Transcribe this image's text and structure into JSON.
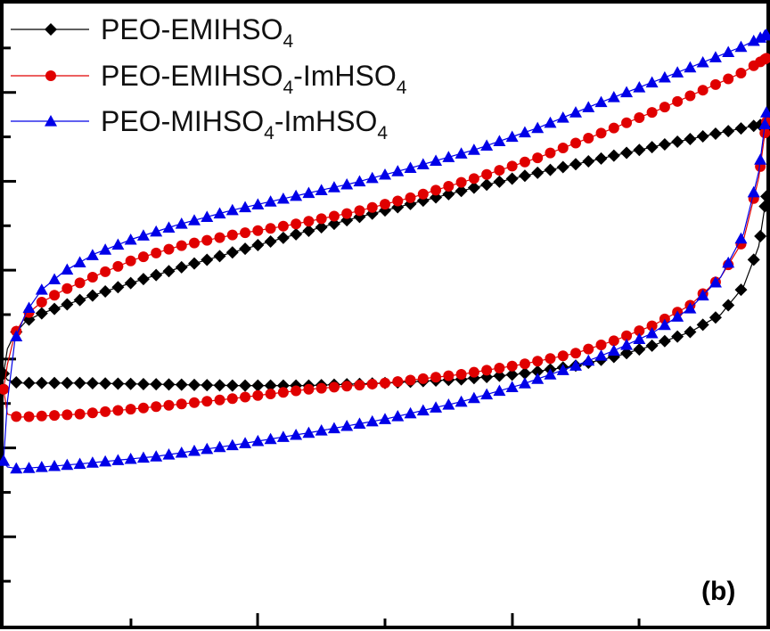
{
  "chart_data": {
    "type": "line",
    "title": "",
    "xlabel": "",
    "ylabel": "",
    "panel_label": "(b)",
    "xlim": [
      0,
      1
    ],
    "ylim": [
      0,
      1
    ],
    "grid": false,
    "legend_placement": "top-left",
    "series": [
      {
        "name": "PEO-EMIHSO4",
        "legend_parts": [
          "PEO-EMIHSO",
          "4",
          ""
        ],
        "color": "#000000",
        "marker": "diamond",
        "upper": {
          "x": [
            0.0,
            0.005,
            0.015,
            0.03,
            0.05,
            0.08,
            0.12,
            0.17,
            0.23,
            0.3,
            0.38,
            0.46,
            0.54,
            0.62,
            0.7,
            0.78,
            0.86,
            0.93,
            0.97,
            0.99,
            1.0
          ],
          "y": [
            0.405,
            0.445,
            0.47,
            0.49,
            0.502,
            0.515,
            0.532,
            0.552,
            0.575,
            0.6,
            0.628,
            0.655,
            0.68,
            0.705,
            0.728,
            0.75,
            0.772,
            0.79,
            0.8,
            0.805,
            0.805
          ]
        },
        "lower": {
          "x": [
            0.0,
            0.005,
            0.02,
            0.05,
            0.1,
            0.2,
            0.3,
            0.4,
            0.5,
            0.6,
            0.68,
            0.75,
            0.8,
            0.85,
            0.9,
            0.94,
            0.97,
            0.99,
            1.0
          ],
          "y": [
            0.405,
            0.395,
            0.39,
            0.39,
            0.39,
            0.388,
            0.386,
            0.386,
            0.39,
            0.396,
            0.405,
            0.418,
            0.432,
            0.45,
            0.472,
            0.5,
            0.545,
            0.61,
            0.69
          ]
        }
      },
      {
        "name": "PEO-EMIHSO4-ImHSO4",
        "legend_parts": [
          "PEO-EMIHSO",
          "4",
          "-ImHSO",
          "4"
        ],
        "color": "#e00000",
        "marker": "circle",
        "upper": {
          "x": [
            0.0,
            0.005,
            0.015,
            0.03,
            0.05,
            0.08,
            0.12,
            0.17,
            0.23,
            0.3,
            0.38,
            0.46,
            0.54,
            0.62,
            0.7,
            0.78,
            0.86,
            0.93,
            0.97,
            0.99,
            1.0
          ],
          "y": [
            0.38,
            0.42,
            0.47,
            0.5,
            0.52,
            0.54,
            0.562,
            0.588,
            0.61,
            0.628,
            0.645,
            0.665,
            0.69,
            0.72,
            0.752,
            0.79,
            0.83,
            0.868,
            0.89,
            0.905,
            0.912
          ]
        },
        "lower": {
          "x": [
            0.0,
            0.005,
            0.02,
            0.05,
            0.1,
            0.2,
            0.3,
            0.4,
            0.5,
            0.6,
            0.68,
            0.75,
            0.8,
            0.85,
            0.9,
            0.94,
            0.97,
            0.99,
            1.0
          ],
          "y": [
            0.38,
            0.34,
            0.335,
            0.337,
            0.34,
            0.352,
            0.365,
            0.38,
            0.39,
            0.404,
            0.42,
            0.438,
            0.458,
            0.482,
            0.515,
            0.56,
            0.62,
            0.72,
            0.81
          ]
        }
      },
      {
        "name": "PEO-MIHSO4-ImHSO4",
        "legend_parts": [
          "PEO-MIHSO",
          "4",
          "-ImHSO",
          "4"
        ],
        "color": "#0000e8",
        "marker": "triangle",
        "upper": {
          "x": [
            0.0,
            0.005,
            0.015,
            0.03,
            0.05,
            0.08,
            0.12,
            0.17,
            0.23,
            0.3,
            0.38,
            0.46,
            0.54,
            0.62,
            0.7,
            0.78,
            0.86,
            0.93,
            0.97,
            0.99,
            1.0
          ],
          "y": [
            0.265,
            0.36,
            0.46,
            0.505,
            0.54,
            0.57,
            0.598,
            0.622,
            0.645,
            0.668,
            0.69,
            0.712,
            0.738,
            0.766,
            0.8,
            0.84,
            0.878,
            0.912,
            0.932,
            0.944,
            0.95
          ]
        },
        "lower": {
          "x": [
            0.0,
            0.005,
            0.02,
            0.05,
            0.1,
            0.2,
            0.3,
            0.4,
            0.5,
            0.6,
            0.68,
            0.75,
            0.8,
            0.85,
            0.9,
            0.94,
            0.97,
            0.99,
            1.0
          ],
          "y": [
            0.265,
            0.255,
            0.252,
            0.255,
            0.26,
            0.272,
            0.29,
            0.31,
            0.332,
            0.36,
            0.388,
            0.418,
            0.442,
            0.47,
            0.51,
            0.56,
            0.63,
            0.73,
            0.825
          ]
        }
      }
    ]
  }
}
